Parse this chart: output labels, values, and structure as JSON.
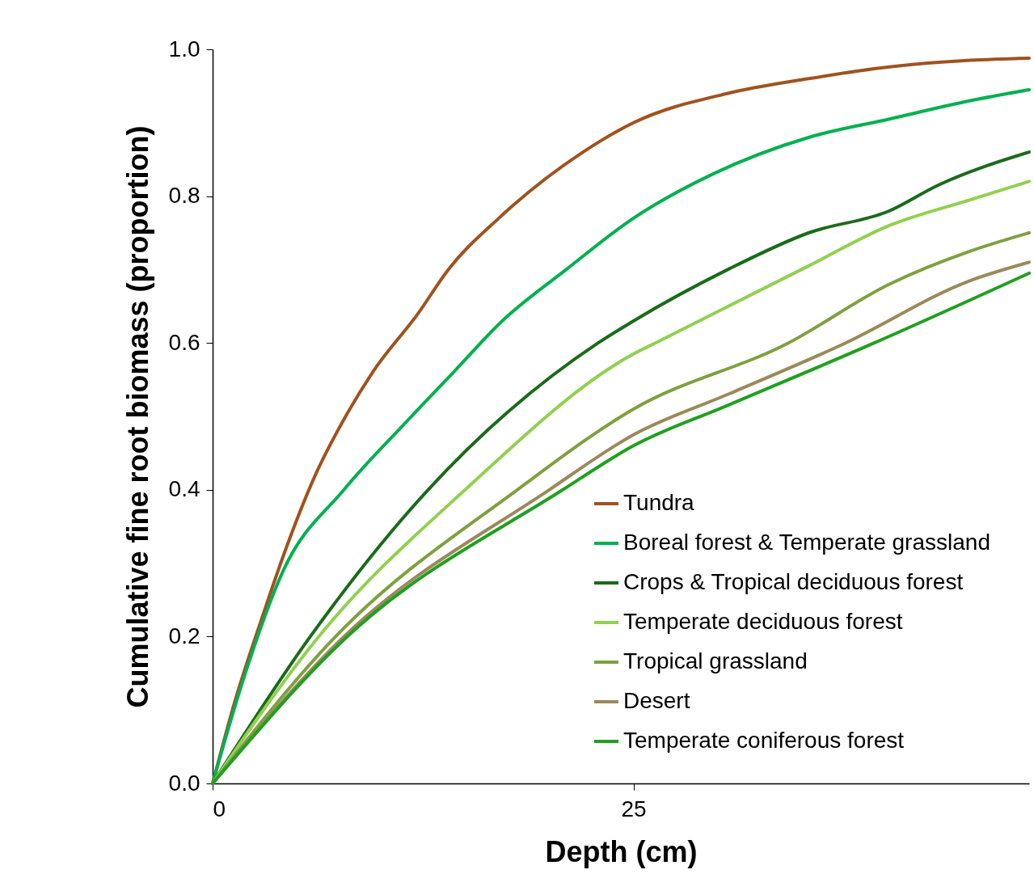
{
  "chart_data": {
    "type": "line",
    "xlabel": "Depth (cm)",
    "ylabel": "Cumulative fine root biomass (proportion)",
    "xlim": [
      0,
      48.5
    ],
    "xticks": [
      0,
      25
    ],
    "ylim": [
      0,
      1
    ],
    "yticks": [
      {
        "value": 0,
        "label": "0.0"
      },
      {
        "value": 0.2,
        "label": "0.2"
      },
      {
        "value": 0.4,
        "label": "0.4"
      },
      {
        "value": 0.6,
        "label": "0.6"
      },
      {
        "value": 0.8,
        "label": "0.8"
      },
      {
        "value": 1,
        "label": "1.0"
      }
    ],
    "grid": false,
    "legend": "bottom right",
    "line_style": "solid",
    "marker": "none",
    "series": [
      {
        "name": "Tundra",
        "color": "#a0521e",
        "x": [
          0,
          1.3,
          3,
          4.2,
          6.1,
          7.9,
          9.5,
          12.2,
          14,
          17,
          22,
          25,
          30.6,
          35.4,
          40.2,
          45,
          48.5
        ],
        "values": [
          0,
          0.11,
          0.23,
          0.31,
          0.42,
          0.5,
          0.56,
          0.64,
          0.7,
          0.77,
          0.86,
          0.9,
          0.94,
          0.96,
          0.976,
          0.985,
          0.988
        ]
      },
      {
        "name": "Boreal forest & Temperate grassland",
        "color": "#00b050",
        "x": [
          0,
          1.8,
          4.2,
          7.8,
          11.4,
          14.3,
          17.2,
          21,
          25,
          29.7,
          35.4,
          40.2,
          45,
          48.5
        ],
        "values": [
          0,
          0.14,
          0.29,
          0.4,
          0.49,
          0.56,
          0.63,
          0.7,
          0.77,
          0.83,
          0.88,
          0.905,
          0.93,
          0.945
        ]
      },
      {
        "name": "Crops & Tropical deciduous forest",
        "color": "#1a6b1a",
        "x": [
          0,
          5.8,
          12.8,
          22.9,
          25,
          30.6,
          35.4,
          40.2,
          43.1,
          48.5
        ],
        "values": [
          0,
          0.2,
          0.4,
          0.6,
          0.63,
          0.7,
          0.75,
          0.78,
          0.815,
          0.86
        ]
      },
      {
        "name": "Temperate deciduous forest",
        "color": "#92d050",
        "x": [
          0,
          6.3,
          15,
          25,
          26.3,
          35.4,
          40.2,
          45,
          48.5
        ],
        "values": [
          0,
          0.2,
          0.4,
          0.585,
          0.6,
          0.705,
          0.76,
          0.795,
          0.82
        ]
      },
      {
        "name": "Tropical grassland",
        "color": "#7fa040",
        "x": [
          0,
          7.3,
          18.1,
          25,
          34.2,
          40.2,
          45,
          48.5
        ],
        "values": [
          0,
          0.2,
          0.4,
          0.51,
          0.6,
          0.68,
          0.725,
          0.75
        ]
      },
      {
        "name": "Desert",
        "color": "#9a8a5a",
        "x": [
          0,
          7.8,
          20,
          25,
          30.6,
          37.6,
          45,
          48.5
        ],
        "values": [
          0,
          0.2,
          0.4,
          0.475,
          0.53,
          0.6,
          0.685,
          0.71
        ]
      },
      {
        "name": "Temperate coniferous forest",
        "color": "#20a020",
        "x": [
          0,
          8,
          20.8,
          25,
          30.6,
          39.3,
          48.5
        ],
        "values": [
          0,
          0.2,
          0.4,
          0.46,
          0.515,
          0.6,
          0.695
        ]
      }
    ]
  }
}
